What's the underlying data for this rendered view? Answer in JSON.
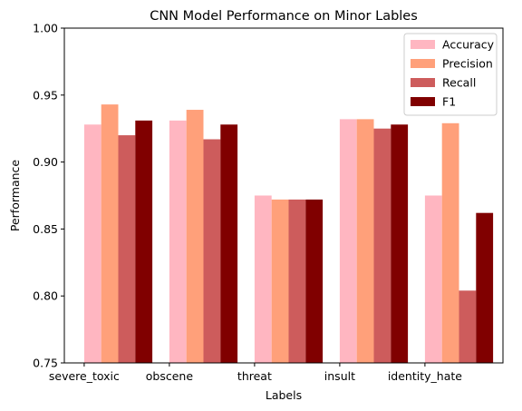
{
  "chart_data": {
    "type": "bar",
    "title": "CNN Model Performance on Minor Lables",
    "xlabel": "Labels",
    "ylabel": "Performance",
    "ylim": [
      0.75,
      1.0
    ],
    "yticks": [
      "0.75",
      "0.80",
      "0.85",
      "0.90",
      "0.95",
      "1.00"
    ],
    "categories": [
      "severe_toxic",
      "obscene",
      "threat",
      "insult",
      "identity_hate"
    ],
    "series": [
      {
        "name": "Accuracy",
        "color": "#ffb6c1",
        "values": [
          0.928,
          0.931,
          0.875,
          0.932,
          0.875
        ]
      },
      {
        "name": "Precision",
        "color": "#ffa07a",
        "values": [
          0.943,
          0.939,
          0.872,
          0.932,
          0.929
        ]
      },
      {
        "name": "Recall",
        "color": "#cd5c5c",
        "values": [
          0.92,
          0.917,
          0.872,
          0.925,
          0.804
        ]
      },
      {
        "name": "F1",
        "color": "#800000",
        "values": [
          0.931,
          0.928,
          0.872,
          0.928,
          0.862
        ]
      }
    ],
    "legend_position": "top-right",
    "grid": false
  }
}
